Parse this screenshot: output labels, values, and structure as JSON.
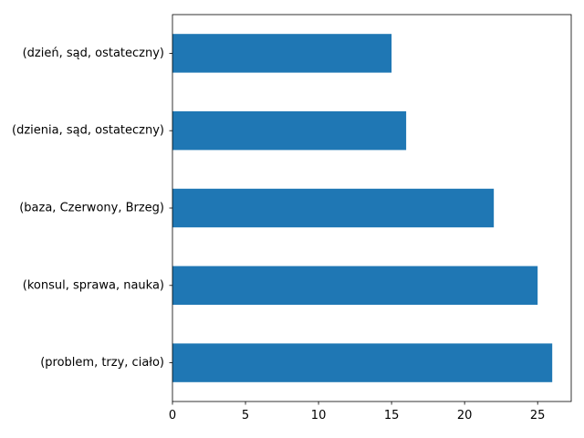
{
  "chart_data": {
    "type": "bar",
    "orientation": "horizontal",
    "categories": [
      "(dzień, sąd, ostateczny)",
      "(dzienia, sąd, ostateczny)",
      "(baza, Czerwony, Brzeg)",
      "(konsul, sprawa, nauka)",
      "(problem, trzy, ciało)"
    ],
    "values": [
      15,
      16,
      22,
      25,
      26
    ],
    "xticks": [
      0,
      5,
      10,
      15,
      20,
      25
    ],
    "xlim": [
      0,
      27.3
    ],
    "title": "",
    "xlabel": "",
    "ylabel": "",
    "bar_color": "#1f77b4",
    "grid": false,
    "legend": "none"
  }
}
